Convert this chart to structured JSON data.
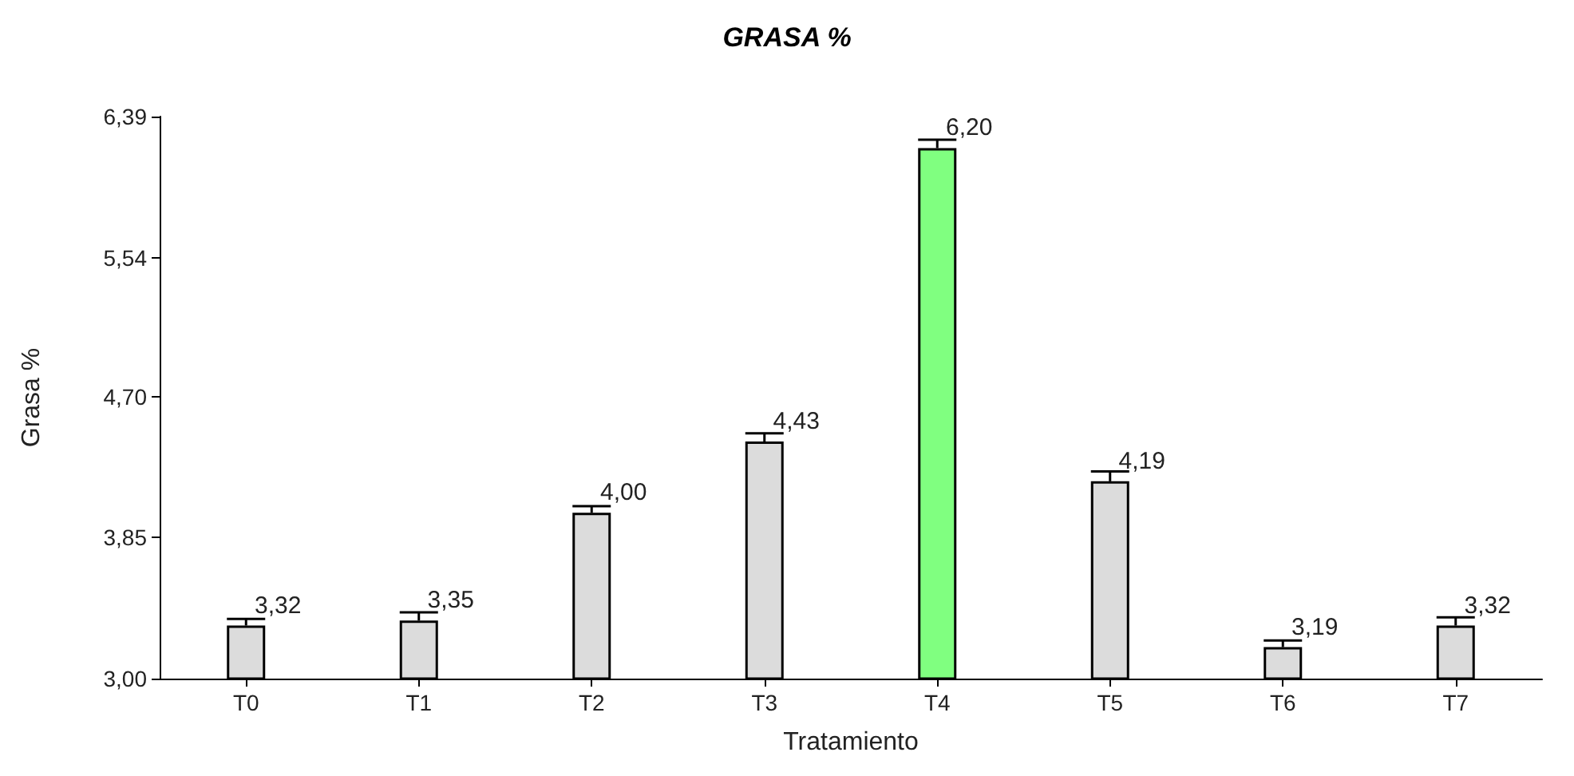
{
  "chart_data": {
    "type": "bar",
    "title": "GRASA %",
    "xlabel": "Tratamiento",
    "ylabel": "Grasa %",
    "categories": [
      "T0",
      "T1",
      "T2",
      "T3",
      "T4",
      "T5",
      "T6",
      "T7"
    ],
    "values": [
      3.32,
      3.35,
      4.0,
      4.43,
      6.2,
      4.19,
      3.19,
      3.32
    ],
    "colors": [
      "#dcdcdc",
      "#dcdcdc",
      "#dcdcdc",
      "#dcdcdc",
      "#80ff80",
      "#dcdcdc",
      "#dcdcdc",
      "#dcdcdc"
    ],
    "errors": [
      [
        3.32,
        3.36
      ],
      [
        3.35,
        3.4
      ],
      [
        4.0,
        4.04
      ],
      [
        4.43,
        4.48
      ],
      [
        6.2,
        6.25
      ],
      [
        4.19,
        4.25
      ],
      [
        3.19,
        3.23
      ],
      [
        3.32,
        3.37
      ]
    ],
    "value_labels": [
      "3,32",
      "3,35",
      "4,00",
      "4,43",
      "6,20",
      "4,19",
      "3,19",
      "3,32"
    ],
    "ylim": [
      3.0,
      6.39
    ],
    "yticks": [
      {
        "value": 3.0,
        "label": "3,00"
      },
      {
        "value": 3.85,
        "label": "3,85"
      },
      {
        "value": 4.7,
        "label": "4,70"
      },
      {
        "value": 5.54,
        "label": "5,54"
      },
      {
        "value": 6.39,
        "label": "6,39"
      }
    ],
    "grid": false
  }
}
